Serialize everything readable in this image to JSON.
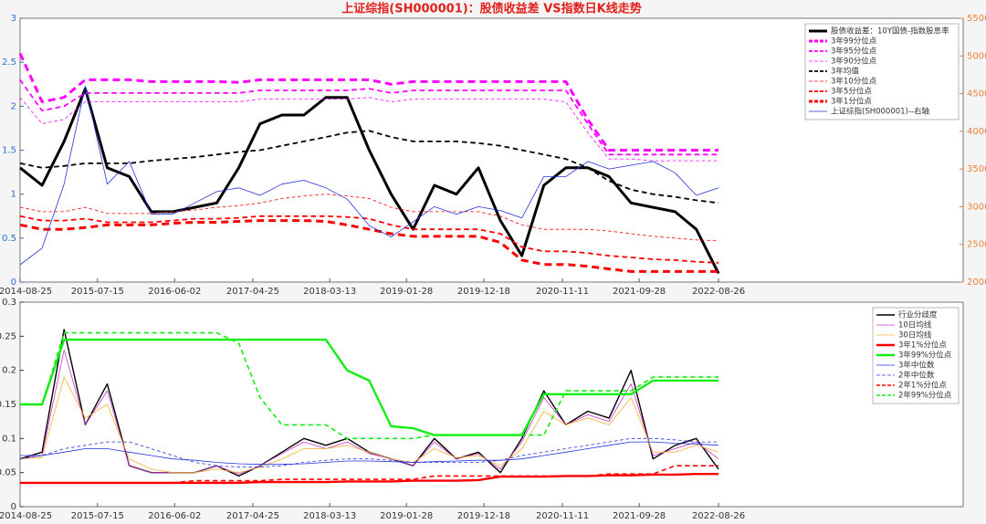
{
  "chart_data": [
    {
      "type": "line",
      "title": "上证综指(SH000001)：股债收益差 VS指数日K线走势",
      "title_color": "#e0201b",
      "x": [
        "2014-08-25",
        "2014-11-25",
        "2015-02-25",
        "2015-05-25",
        "2015-08-25",
        "2015-11-25",
        "2016-02-25",
        "2016-05-25",
        "2016-08-25",
        "2016-11-25",
        "2017-02-25",
        "2017-05-25",
        "2017-08-25",
        "2017-11-25",
        "2018-02-25",
        "2018-05-25",
        "2018-08-25",
        "2018-11-25",
        "2019-02-25",
        "2019-05-25",
        "2019-08-25",
        "2019-11-25",
        "2020-02-25",
        "2020-05-25",
        "2020-08-25",
        "2020-11-25",
        "2021-02-25",
        "2021-05-25",
        "2021-08-25",
        "2021-11-25",
        "2022-02-25",
        "2022-05-25",
        "2022-08-26"
      ],
      "xlim": [
        "2014-08-25",
        "2025-06-15"
      ],
      "xticks": [
        "2014-08-25",
        "2015-07-15",
        "2016-06-02",
        "2017-04-25",
        "2018-03-13",
        "2019-01-28",
        "2019-12-18",
        "2020-11-11",
        "2021-09-28",
        "2022-08-26"
      ],
      "ylim": [
        0,
        3
      ],
      "yticks": [
        0,
        0.5,
        1,
        1.5,
        2,
        2.5,
        3
      ],
      "y_color": "#2a6fc9",
      "y2lim": [
        2000,
        5500
      ],
      "y2ticks": [
        2000,
        2500,
        3000,
        3500,
        4000,
        4500,
        5000,
        5500
      ],
      "y2_color": "#e8823a",
      "legend": "upper right",
      "series": [
        {
          "name": "股债收益差：10Y国债-指数股息率",
          "color": "#000000",
          "width": 3,
          "dash": false,
          "values": [
            1.3,
            1.1,
            1.6,
            2.2,
            1.3,
            1.2,
            0.8,
            0.8,
            0.85,
            0.9,
            1.3,
            1.8,
            1.9,
            1.9,
            2.1,
            2.1,
            1.5,
            1.0,
            0.6,
            1.1,
            1.0,
            1.3,
            0.7,
            0.3,
            1.1,
            1.3,
            1.3,
            1.2,
            0.9,
            0.85,
            0.8,
            0.6,
            0.1
          ]
        },
        {
          "name": "3年99分位点",
          "color": "#ff00ff",
          "width": 3,
          "dash": true,
          "values": [
            2.6,
            2.05,
            2.1,
            2.3,
            2.3,
            2.3,
            2.28,
            2.28,
            2.28,
            2.28,
            2.27,
            2.3,
            2.3,
            2.3,
            2.3,
            2.3,
            2.3,
            2.25,
            2.28,
            2.28,
            2.28,
            2.28,
            2.28,
            2.28,
            2.28,
            2.28,
            1.85,
            1.5,
            1.5,
            1.5,
            1.5,
            1.5,
            1.5
          ]
        },
        {
          "name": "3年95分位点",
          "color": "#ff00ff",
          "width": 1.8,
          "dash": true,
          "values": [
            2.3,
            1.95,
            2.0,
            2.15,
            2.15,
            2.15,
            2.15,
            2.15,
            2.15,
            2.15,
            2.15,
            2.18,
            2.18,
            2.18,
            2.18,
            2.18,
            2.2,
            2.15,
            2.18,
            2.18,
            2.18,
            2.18,
            2.18,
            2.18,
            2.18,
            2.18,
            1.8,
            1.45,
            1.45,
            1.45,
            1.45,
            1.45,
            1.45
          ]
        },
        {
          "name": "3年90分位点",
          "color": "#ff00ff",
          "width": 0.8,
          "dash": true,
          "values": [
            2.1,
            1.8,
            1.85,
            2.05,
            2.05,
            2.05,
            2.05,
            2.05,
            2.05,
            2.05,
            2.05,
            2.08,
            2.08,
            2.08,
            2.08,
            2.08,
            2.1,
            2.05,
            2.08,
            2.08,
            2.08,
            2.08,
            2.08,
            2.08,
            2.08,
            2.05,
            1.7,
            1.4,
            1.4,
            1.38,
            1.38,
            1.38,
            1.38
          ]
        },
        {
          "name": "3年均值",
          "color": "#000000",
          "width": 1.8,
          "dash": true,
          "values": [
            1.35,
            1.3,
            1.32,
            1.35,
            1.35,
            1.35,
            1.38,
            1.4,
            1.42,
            1.45,
            1.48,
            1.5,
            1.55,
            1.6,
            1.65,
            1.7,
            1.72,
            1.65,
            1.6,
            1.6,
            1.6,
            1.58,
            1.55,
            1.5,
            1.45,
            1.4,
            1.3,
            1.15,
            1.05,
            1.0,
            0.97,
            0.93,
            0.9
          ]
        },
        {
          "name": "3年10分位点",
          "color": "#ff0000",
          "width": 0.8,
          "dash": true,
          "values": [
            0.85,
            0.8,
            0.8,
            0.85,
            0.78,
            0.78,
            0.78,
            0.8,
            0.82,
            0.85,
            0.87,
            0.9,
            0.95,
            0.98,
            1.0,
            0.98,
            0.95,
            0.85,
            0.8,
            0.8,
            0.8,
            0.8,
            0.75,
            0.65,
            0.6,
            0.6,
            0.6,
            0.58,
            0.55,
            0.52,
            0.5,
            0.48,
            0.47
          ]
        },
        {
          "name": "3年5分位点",
          "color": "#ff0000",
          "width": 1.8,
          "dash": true,
          "values": [
            0.75,
            0.7,
            0.7,
            0.72,
            0.68,
            0.68,
            0.68,
            0.7,
            0.72,
            0.72,
            0.73,
            0.75,
            0.75,
            0.75,
            0.75,
            0.74,
            0.72,
            0.65,
            0.6,
            0.6,
            0.6,
            0.6,
            0.55,
            0.4,
            0.35,
            0.35,
            0.33,
            0.3,
            0.28,
            0.26,
            0.25,
            0.23,
            0.22
          ]
        },
        {
          "name": "3年1分位点",
          "color": "#ff0000",
          "width": 3,
          "dash": true,
          "values": [
            0.65,
            0.6,
            0.6,
            0.62,
            0.65,
            0.65,
            0.65,
            0.67,
            0.68,
            0.68,
            0.69,
            0.7,
            0.7,
            0.7,
            0.69,
            0.65,
            0.6,
            0.55,
            0.52,
            0.52,
            0.52,
            0.52,
            0.45,
            0.25,
            0.2,
            0.2,
            0.18,
            0.15,
            0.12,
            0.12,
            0.12,
            0.12,
            0.12
          ]
        },
        {
          "name": "上证综指(SH000001)--右轴",
          "color": "#2233dd",
          "width": 0.8,
          "dash": false,
          "axis": "y2",
          "values": [
            2230,
            2450,
            3300,
            4600,
            3300,
            3600,
            2900,
            2900,
            3050,
            3200,
            3250,
            3150,
            3300,
            3350,
            3250,
            3100,
            2750,
            2600,
            2800,
            3000,
            2900,
            3000,
            2950,
            2850,
            3400,
            3400,
            3600,
            3500,
            3550,
            3600,
            3450,
            3150,
            3250
          ]
        }
      ]
    },
    {
      "type": "line",
      "x": [
        "2014-08-25",
        "2014-11-25",
        "2015-02-25",
        "2015-05-25",
        "2015-08-25",
        "2015-11-25",
        "2016-02-25",
        "2016-05-25",
        "2016-08-25",
        "2016-11-25",
        "2017-02-25",
        "2017-05-25",
        "2017-08-25",
        "2017-11-25",
        "2018-02-25",
        "2018-05-25",
        "2018-08-25",
        "2018-11-25",
        "2019-02-25",
        "2019-05-25",
        "2019-08-25",
        "2019-11-25",
        "2020-02-25",
        "2020-05-25",
        "2020-08-25",
        "2020-11-25",
        "2021-02-25",
        "2021-05-25",
        "2021-08-25",
        "2021-11-25",
        "2022-02-25",
        "2022-05-25",
        "2022-08-26"
      ],
      "xlim": [
        "2014-08-25",
        "2025-06-15"
      ],
      "xticks": [
        "2014-08-25",
        "2015-07-15",
        "2016-06-02",
        "2017-04-25",
        "2018-03-13",
        "2019-01-28",
        "2019-12-18",
        "2020-11-11",
        "2021-09-28",
        "2022-08-26"
      ],
      "ylim": [
        0,
        0.3
      ],
      "yticks": [
        0,
        0.05,
        0.1,
        0.15,
        0.2,
        0.25,
        0.3
      ],
      "y_color": "#333333",
      "legend": "upper right",
      "series": [
        {
          "name": "行业分歧度",
          "color": "#000000",
          "width": 1.4,
          "dash": false,
          "values": [
            0.07,
            0.08,
            0.26,
            0.12,
            0.18,
            0.06,
            0.05,
            0.05,
            0.05,
            0.06,
            0.045,
            0.06,
            0.08,
            0.1,
            0.09,
            0.1,
            0.08,
            0.07,
            0.06,
            0.1,
            0.07,
            0.08,
            0.05,
            0.1,
            0.17,
            0.12,
            0.14,
            0.13,
            0.2,
            0.07,
            0.09,
            0.1,
            0.055
          ]
        },
        {
          "name": "10日均线",
          "color": "#cc33cc",
          "width": 0.8,
          "dash": false,
          "values": [
            0.07,
            0.075,
            0.23,
            0.12,
            0.17,
            0.06,
            0.05,
            0.05,
            0.05,
            0.06,
            0.048,
            0.06,
            0.078,
            0.095,
            0.085,
            0.095,
            0.078,
            0.07,
            0.06,
            0.095,
            0.07,
            0.078,
            0.055,
            0.095,
            0.16,
            0.12,
            0.135,
            0.125,
            0.18,
            0.075,
            0.085,
            0.095,
            0.07
          ]
        },
        {
          "name": "30日均线",
          "color": "#f2b233",
          "width": 0.8,
          "dash": false,
          "values": [
            0.07,
            0.072,
            0.19,
            0.13,
            0.15,
            0.07,
            0.055,
            0.05,
            0.05,
            0.055,
            0.05,
            0.058,
            0.07,
            0.085,
            0.085,
            0.09,
            0.08,
            0.07,
            0.065,
            0.085,
            0.072,
            0.075,
            0.06,
            0.085,
            0.14,
            0.12,
            0.13,
            0.12,
            0.16,
            0.08,
            0.08,
            0.09,
            0.08
          ]
        },
        {
          "name": "3年1%分位点",
          "color": "#ff0000",
          "width": 2.4,
          "dash": false,
          "values": [
            0.035,
            0.035,
            0.035,
            0.035,
            0.035,
            0.035,
            0.035,
            0.035,
            0.035,
            0.035,
            0.035,
            0.036,
            0.036,
            0.036,
            0.036,
            0.037,
            0.037,
            0.037,
            0.038,
            0.038,
            0.038,
            0.039,
            0.044,
            0.044,
            0.044,
            0.045,
            0.045,
            0.046,
            0.046,
            0.047,
            0.047,
            0.048,
            0.048
          ]
        },
        {
          "name": "3年99%分位点",
          "color": "#11ee11",
          "width": 2.4,
          "dash": false,
          "values": [
            0.15,
            0.15,
            0.245,
            0.245,
            0.245,
            0.245,
            0.245,
            0.245,
            0.245,
            0.245,
            0.245,
            0.245,
            0.245,
            0.245,
            0.245,
            0.2,
            0.185,
            0.118,
            0.115,
            0.105,
            0.105,
            0.105,
            0.105,
            0.105,
            0.165,
            0.165,
            0.165,
            0.165,
            0.165,
            0.185,
            0.185,
            0.185,
            0.185
          ]
        },
        {
          "name": "3年中位数",
          "color": "#2233dd",
          "width": 0.8,
          "dash": false,
          "values": [
            0.075,
            0.075,
            0.08,
            0.085,
            0.085,
            0.08,
            0.075,
            0.07,
            0.068,
            0.065,
            0.063,
            0.062,
            0.062,
            0.063,
            0.065,
            0.067,
            0.067,
            0.066,
            0.065,
            0.066,
            0.067,
            0.068,
            0.068,
            0.07,
            0.075,
            0.08,
            0.085,
            0.09,
            0.095,
            0.095,
            0.093,
            0.092,
            0.09
          ]
        },
        {
          "name": "2年中位数",
          "color": "#2233dd",
          "width": 0.8,
          "dash": true,
          "values": [
            0.07,
            0.075,
            0.085,
            0.09,
            0.095,
            0.095,
            0.085,
            0.075,
            0.065,
            0.06,
            0.058,
            0.058,
            0.06,
            0.065,
            0.068,
            0.07,
            0.07,
            0.068,
            0.065,
            0.065,
            0.065,
            0.065,
            0.068,
            0.075,
            0.08,
            0.085,
            0.09,
            0.095,
            0.1,
            0.1,
            0.098,
            0.095,
            0.095
          ]
        },
        {
          "name": "2年1%分位点",
          "color": "#ff0000",
          "width": 1.6,
          "dash": true,
          "values": [
            0.035,
            0.035,
            0.035,
            0.035,
            0.035,
            0.035,
            0.035,
            0.035,
            0.038,
            0.038,
            0.038,
            0.038,
            0.04,
            0.04,
            0.04,
            0.04,
            0.04,
            0.04,
            0.04,
            0.045,
            0.045,
            0.045,
            0.045,
            0.045,
            0.045,
            0.045,
            0.045,
            0.048,
            0.048,
            0.048,
            0.06,
            0.06,
            0.06
          ]
        },
        {
          "name": "2年99%分位点",
          "color": "#11ee11",
          "width": 1.6,
          "dash": true,
          "values": [
            0.15,
            0.15,
            0.255,
            0.255,
            0.255,
            0.255,
            0.255,
            0.255,
            0.255,
            0.255,
            0.24,
            0.16,
            0.12,
            0.12,
            0.12,
            0.1,
            0.1,
            0.1,
            0.1,
            0.105,
            0.105,
            0.105,
            0.105,
            0.105,
            0.105,
            0.17,
            0.17,
            0.17,
            0.17,
            0.19,
            0.19,
            0.19,
            0.19
          ]
        }
      ]
    }
  ]
}
